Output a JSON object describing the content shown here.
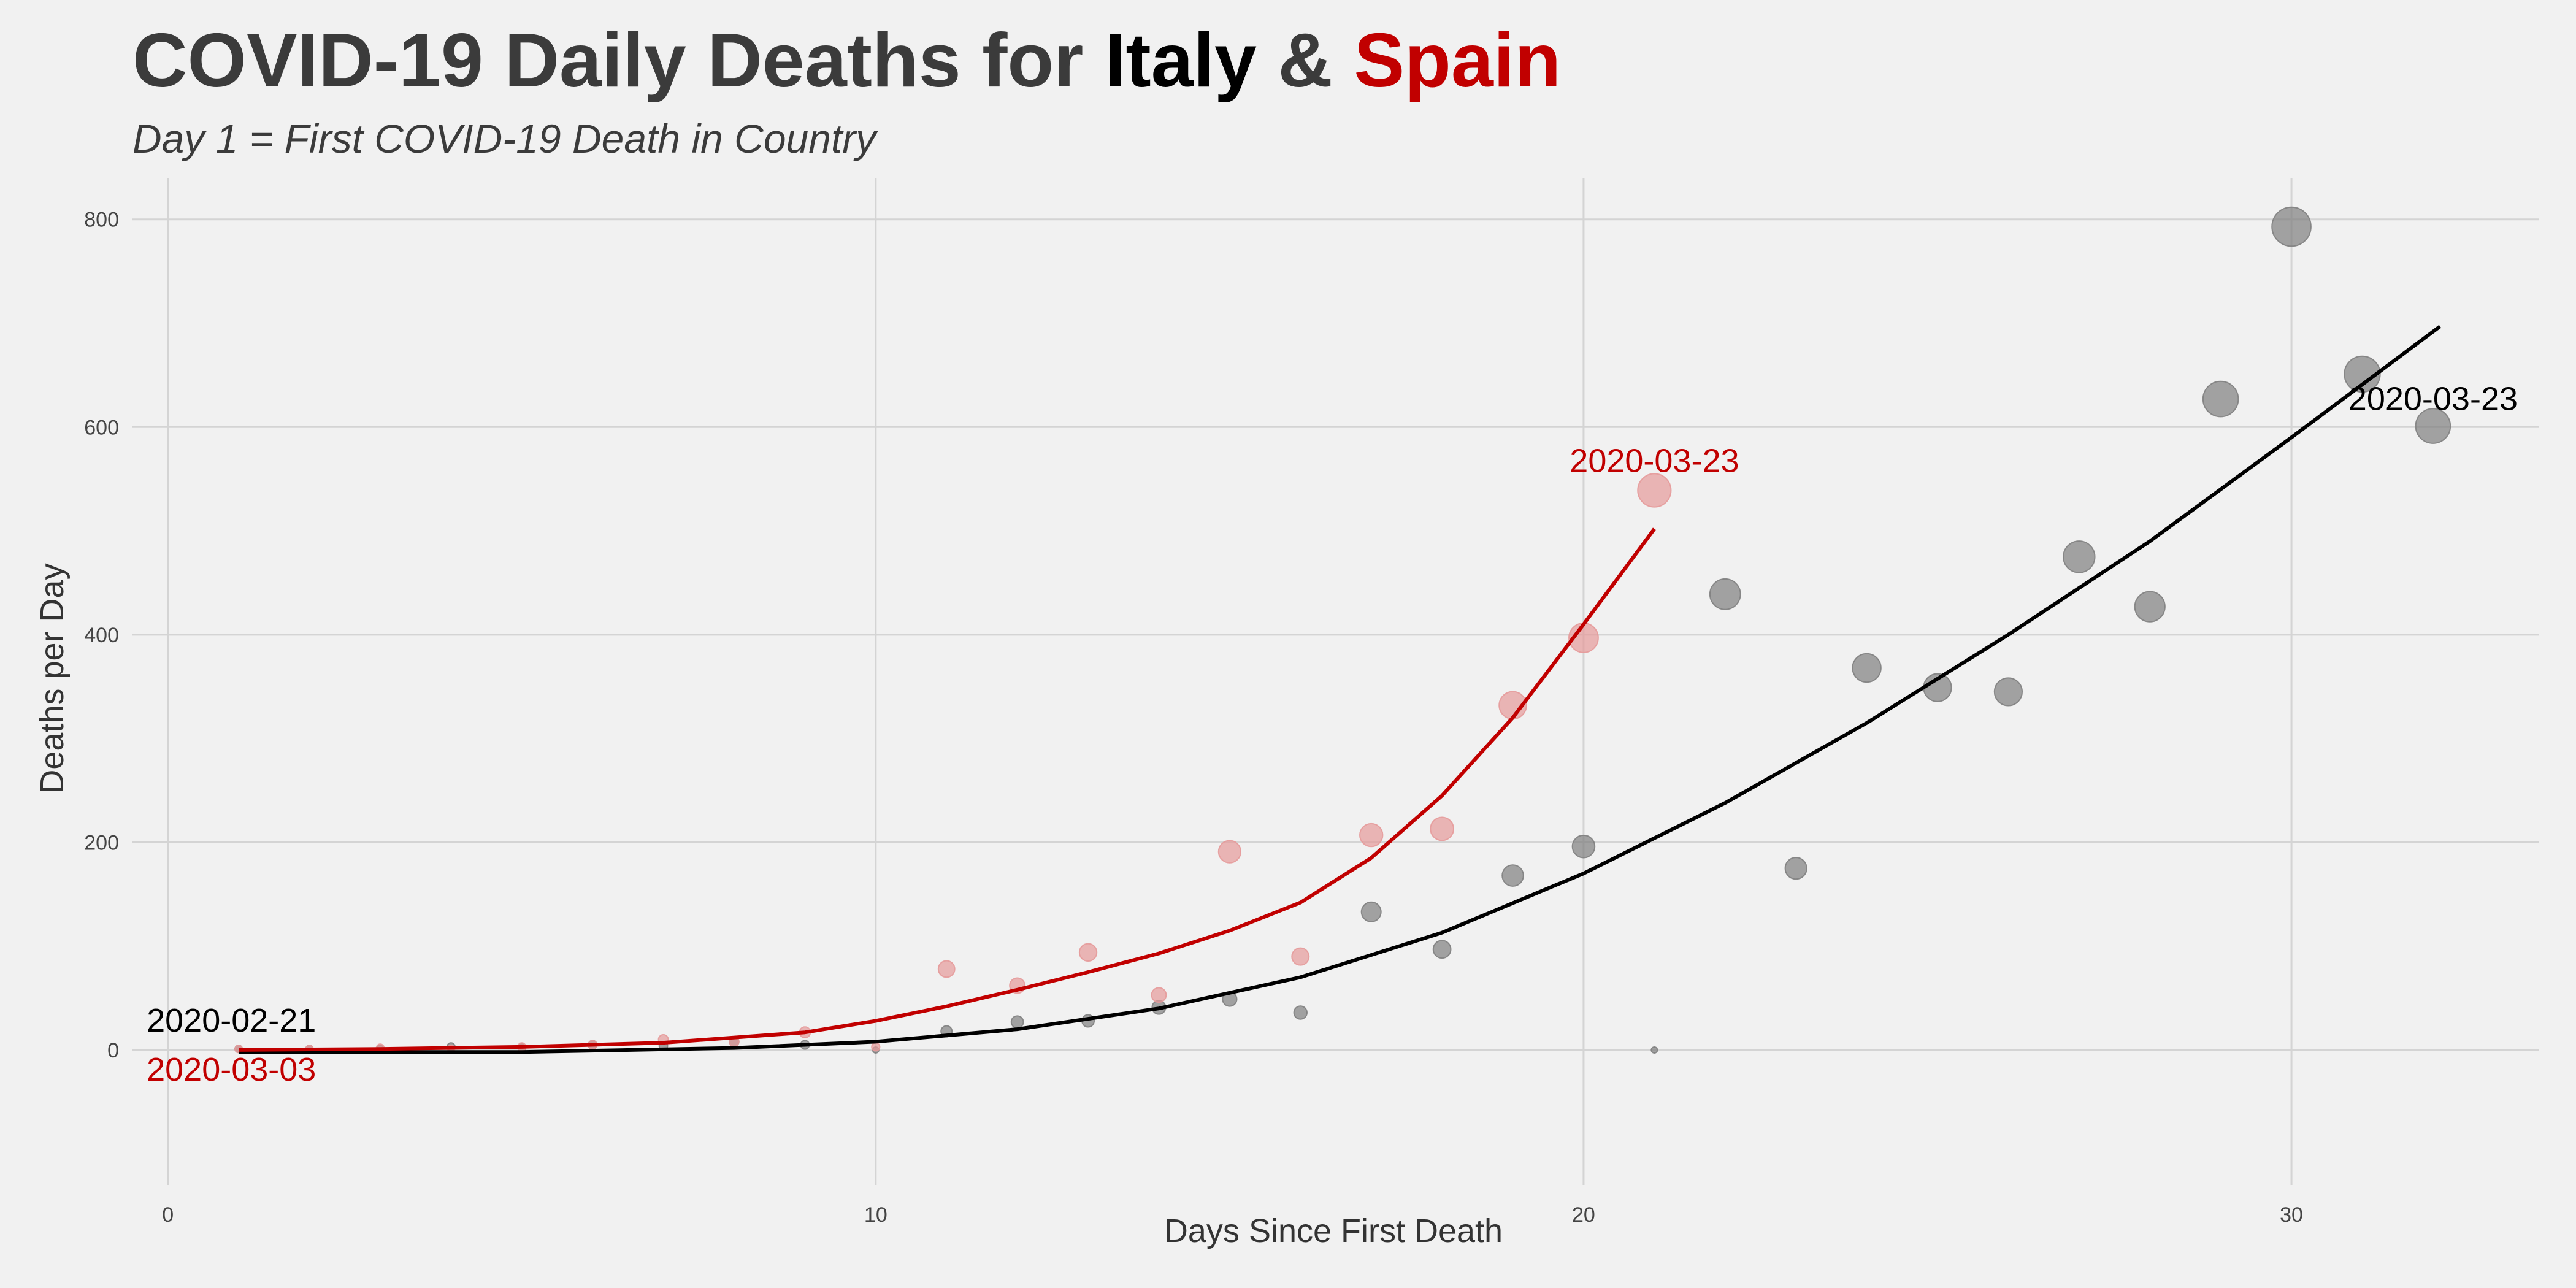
{
  "title": {
    "prefix": "COVID-19 Daily Deaths for ",
    "series_a": "Italy",
    "joiner": " & ",
    "series_b": "Spain"
  },
  "subtitle": "Day 1 = First COVID-19 Death in Country",
  "colors": {
    "background": "#f1f1f1",
    "grid": "#d4d4d4",
    "italy": "#000000",
    "spain": "#c10000",
    "italy_points": "#7f7f7f",
    "spain_points": "#e59a9a",
    "title": "#3b3b3b"
  },
  "chart_data": {
    "type": "scatter",
    "xlabel": "Days Since First Death",
    "ylabel": "Deaths per Day",
    "xlim": [
      -0.5,
      33.5
    ],
    "ylim": [
      -130,
      840
    ],
    "x_ticks": [
      0,
      10,
      20,
      30
    ],
    "y_ticks": [
      0,
      200,
      400,
      600,
      800
    ],
    "grid": true,
    "point_size_by": "Deaths per Day",
    "series": [
      {
        "name": "Italy",
        "x": [
          1,
          2,
          3,
          4,
          5,
          6,
          7,
          8,
          9,
          10,
          11,
          12,
          13,
          14,
          15,
          16,
          17,
          18,
          19,
          20,
          21,
          22,
          23,
          24,
          25,
          26,
          27,
          28,
          29,
          30,
          31,
          32
        ],
        "y": [
          1,
          1,
          1,
          3,
          2,
          5,
          4,
          8,
          5,
          0,
          18,
          27,
          28,
          41,
          49,
          36,
          133,
          97,
          168,
          196,
          0,
          439,
          175,
          368,
          349,
          345,
          475,
          427,
          627,
          793,
          651,
          601
        ],
        "trend": [
          [
            1,
            -2
          ],
          [
            5,
            -2
          ],
          [
            8,
            2
          ],
          [
            10,
            8
          ],
          [
            12,
            20
          ],
          [
            14,
            40
          ],
          [
            16,
            70
          ],
          [
            18,
            113
          ],
          [
            20,
            170
          ],
          [
            22,
            238
          ],
          [
            24,
            315
          ],
          [
            26,
            400
          ],
          [
            28,
            490
          ],
          [
            30,
            590
          ],
          [
            32.1,
            697
          ]
        ],
        "annotations": [
          {
            "x": 1,
            "y": 1,
            "text": "2020-02-21"
          },
          {
            "x": 32,
            "y": 601,
            "text": "2020-03-23"
          }
        ]
      },
      {
        "name": "Spain",
        "x": [
          1,
          2,
          3,
          4,
          5,
          6,
          7,
          8,
          9,
          10,
          11,
          12,
          13,
          14,
          15,
          16,
          17,
          18,
          19,
          20,
          21
        ],
        "y": [
          1,
          1,
          2,
          1,
          3,
          5,
          10,
          8,
          17,
          3,
          78,
          62,
          94,
          53,
          191,
          90,
          207,
          213,
          332,
          397,
          539
        ],
        "trend": [
          [
            1,
            0
          ],
          [
            3,
            1
          ],
          [
            5,
            3
          ],
          [
            7,
            7
          ],
          [
            9,
            17
          ],
          [
            10,
            28
          ],
          [
            11,
            42
          ],
          [
            12,
            58
          ],
          [
            13,
            75
          ],
          [
            14,
            93
          ],
          [
            15,
            115
          ],
          [
            16,
            142
          ],
          [
            17,
            185
          ],
          [
            18,
            245
          ],
          [
            19,
            320
          ],
          [
            20,
            410
          ],
          [
            21,
            502
          ]
        ],
        "annotations": [
          {
            "x": 1,
            "y": 1,
            "text": "2020-03-03"
          },
          {
            "x": 21,
            "y": 539,
            "text": "2020-03-23"
          }
        ]
      }
    ]
  }
}
